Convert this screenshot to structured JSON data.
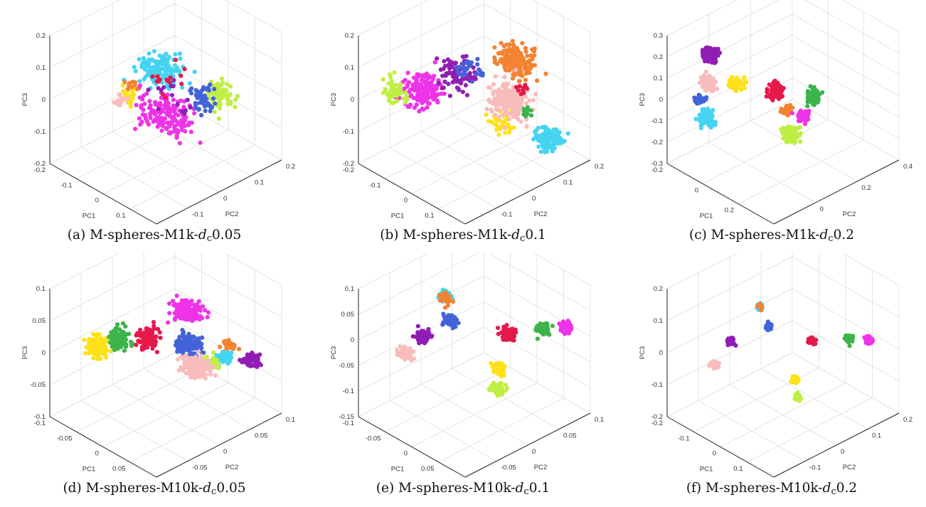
{
  "figures": [
    {
      "label": "(a)",
      "name": "M-spheres-M1k-",
      "dc": "d",
      "sub": "c",
      "val": "0.05"
    },
    {
      "label": "(b)",
      "name": "M-spheres-M1k-",
      "dc": "d",
      "sub": "c",
      "val": "0.1"
    },
    {
      "label": "(c)",
      "name": "M-spheres-M1k-",
      "dc": "d",
      "sub": "c",
      "val": "0.2"
    },
    {
      "label": "(d)",
      "name": "M-spheres-M10k-",
      "dc": "d",
      "sub": "c",
      "val": "0.05"
    },
    {
      "label": "(e)",
      "name": "M-spheres-M10k-",
      "dc": "d",
      "sub": "c",
      "val": "0.1"
    },
    {
      "label": "(f)",
      "name": "M-spheres-M10k-",
      "dc": "d",
      "sub": "c",
      "val": "0.2"
    }
  ],
  "palette": {
    "magenta": "#ee33e8",
    "cyan": "#44d4f2",
    "lime": "#bfef45",
    "yellow": "#ffe119",
    "pink": "#f8bcbc",
    "blue": "#4363d8",
    "green": "#3cb44b",
    "red": "#e6194b",
    "purple": "#911eb4",
    "orange": "#f58231"
  },
  "chart_data": [
    {
      "type": "scatter",
      "title": "",
      "xlabel": "PC1",
      "ylabel": "PC2",
      "zlabel": "PC3",
      "xlim": [
        -0.2,
        0.2
      ],
      "ylim": [
        -0.2,
        0.2
      ],
      "zlim": [
        -0.2,
        0.2
      ],
      "xticks": [
        "-0.2",
        "-0.1",
        "0",
        "0.1",
        "0.2"
      ],
      "yticks": [
        "-0.2",
        "-0.1",
        "0",
        "0.1",
        "0.2"
      ],
      "zticks": [
        "-0.2",
        "-0.1",
        "0",
        "0.1",
        "0.2"
      ],
      "clusters": [
        {
          "color": "magenta",
          "center": [
            0.0,
            0.0,
            -0.05
          ],
          "spread": [
            0.08,
            0.06,
            0.04
          ],
          "n": 170
        },
        {
          "color": "cyan",
          "center": [
            -0.02,
            0.0,
            0.08
          ],
          "spread": [
            0.06,
            0.05,
            0.035
          ],
          "n": 140
        },
        {
          "color": "lime",
          "center": [
            0.09,
            0.1,
            0.0
          ],
          "spread": [
            0.04,
            0.03,
            0.04
          ],
          "n": 70
        },
        {
          "color": "blue",
          "center": [
            0.05,
            0.08,
            -0.02
          ],
          "spread": [
            0.04,
            0.03,
            0.04
          ],
          "n": 50
        },
        {
          "color": "yellow",
          "center": [
            -0.08,
            -0.05,
            0.0
          ],
          "spread": [
            0.02,
            0.02,
            0.04
          ],
          "n": 25
        },
        {
          "color": "pink",
          "center": [
            -0.1,
            -0.06,
            -0.02
          ],
          "spread": [
            0.02,
            0.02,
            0.03
          ],
          "n": 15
        },
        {
          "color": "red",
          "center": [
            0.0,
            0.0,
            0.06
          ],
          "spread": [
            0.06,
            0.05,
            0.04
          ],
          "n": 15
        },
        {
          "color": "purple",
          "center": [
            0.0,
            0.02,
            0.0
          ],
          "spread": [
            0.06,
            0.05,
            0.06
          ],
          "n": 15
        },
        {
          "color": "orange",
          "center": [
            -0.08,
            -0.04,
            0.02
          ],
          "spread": [
            0.02,
            0.02,
            0.02
          ],
          "n": 10
        }
      ]
    },
    {
      "type": "scatter",
      "title": "",
      "xlabel": "PC1",
      "ylabel": "PC2",
      "zlabel": "PC3",
      "xlim": [
        -0.2,
        0.2
      ],
      "ylim": [
        -0.2,
        0.2
      ],
      "zlim": [
        -0.2,
        0.2
      ],
      "xticks": [
        "-0.2",
        "-0.1",
        "0",
        "0.1",
        "0.2"
      ],
      "yticks": [
        "-0.2",
        "-0.1",
        "0",
        "0.1",
        "0.2"
      ],
      "zticks": [
        "-0.2",
        "-0.1",
        "0",
        "0.1",
        "0.2"
      ],
      "clusters": [
        {
          "color": "magenta",
          "center": [
            -0.1,
            -0.08,
            0.02
          ],
          "spread": [
            0.05,
            0.04,
            0.05
          ],
          "n": 150
        },
        {
          "color": "orange",
          "center": [
            0.08,
            0.06,
            0.12
          ],
          "spread": [
            0.06,
            0.04,
            0.04
          ],
          "n": 150
        },
        {
          "color": "purple",
          "center": [
            -0.04,
            -0.02,
            0.06
          ],
          "spread": [
            0.05,
            0.04,
            0.05
          ],
          "n": 80
        },
        {
          "color": "lime",
          "center": [
            -0.16,
            -0.12,
            0.0
          ],
          "spread": [
            0.03,
            0.02,
            0.04
          ],
          "n": 50
        },
        {
          "color": "blue",
          "center": [
            -0.02,
            0.0,
            0.08
          ],
          "spread": [
            0.03,
            0.03,
            0.03
          ],
          "n": 30
        },
        {
          "color": "yellow",
          "center": [
            0.07,
            0.03,
            -0.06
          ],
          "spread": [
            0.04,
            0.03,
            0.03
          ],
          "n": 40
        },
        {
          "color": "cyan",
          "center": [
            0.14,
            0.12,
            -0.12
          ],
          "spread": [
            0.04,
            0.03,
            0.03
          ],
          "n": 100
        },
        {
          "color": "pink",
          "center": [
            0.07,
            0.05,
            0.0
          ],
          "spread": [
            0.05,
            0.04,
            0.05
          ],
          "n": 220
        },
        {
          "color": "green",
          "center": [
            0.1,
            0.08,
            -0.04
          ],
          "spread": [
            0.02,
            0.02,
            0.02
          ],
          "n": 10
        },
        {
          "color": "red",
          "center": [
            0.1,
            0.07,
            0.04
          ],
          "spread": [
            0.02,
            0.02,
            0.02
          ],
          "n": 10
        }
      ]
    },
    {
      "type": "scatter",
      "title": "",
      "xlabel": "PC1",
      "ylabel": "PC2",
      "zlabel": "PC3",
      "xlim": [
        -0.2,
        0.4
      ],
      "ylim": [
        -0.2,
        0.4
      ],
      "zlim": [
        -0.3,
        0.3
      ],
      "xticks": [
        "-0.2",
        "0",
        "0.2",
        "0.4"
      ],
      "yticks": [
        "-0.2",
        "0",
        "0.2",
        "0.4"
      ],
      "zticks": [
        "-0.3",
        "-0.2",
        "-0.1",
        "0",
        "0.1",
        "0.2",
        "0.3"
      ],
      "clusters": [
        {
          "color": "purple",
          "center": [
            -0.12,
            -0.06,
            0.18
          ],
          "spread": [
            0.03,
            0.025,
            0.03
          ],
          "n": 150
        },
        {
          "color": "pink",
          "center": [
            -0.14,
            -0.05,
            0.03
          ],
          "spread": [
            0.03,
            0.025,
            0.03
          ],
          "n": 90
        },
        {
          "color": "yellow",
          "center": [
            -0.04,
            0.0,
            0.05
          ],
          "spread": [
            0.025,
            0.02,
            0.03
          ],
          "n": 60
        },
        {
          "color": "blue",
          "center": [
            -0.16,
            -0.08,
            -0.04
          ],
          "spread": [
            0.02,
            0.02,
            0.02
          ],
          "n": 30
        },
        {
          "color": "cyan",
          "center": [
            -0.13,
            -0.07,
            -0.12
          ],
          "spread": [
            0.03,
            0.025,
            0.03
          ],
          "n": 100
        },
        {
          "color": "red",
          "center": [
            0.08,
            0.08,
            0.03
          ],
          "spread": [
            0.03,
            0.025,
            0.03
          ],
          "n": 100
        },
        {
          "color": "green",
          "center": [
            0.2,
            0.16,
            0.02
          ],
          "spread": [
            0.03,
            0.025,
            0.03
          ],
          "n": 80
        },
        {
          "color": "orange",
          "center": [
            0.12,
            0.1,
            -0.05
          ],
          "spread": [
            0.02,
            0.02,
            0.02
          ],
          "n": 60
        },
        {
          "color": "magenta",
          "center": [
            0.16,
            0.14,
            -0.08
          ],
          "spread": [
            0.025,
            0.02,
            0.025
          ],
          "n": 60
        },
        {
          "color": "lime",
          "center": [
            0.12,
            0.12,
            -0.17
          ],
          "spread": [
            0.03,
            0.025,
            0.03
          ],
          "n": 140
        }
      ]
    },
    {
      "type": "scatter",
      "title": "",
      "xlabel": "PC1",
      "ylabel": "PC2",
      "zlabel": "PC3",
      "xlim": [
        -0.1,
        0.1
      ],
      "ylim": [
        -0.1,
        0.1
      ],
      "zlim": [
        -0.1,
        0.1
      ],
      "xticks": [
        "-0.1",
        "-0.05",
        "0",
        "0.05",
        "0.1"
      ],
      "yticks": [
        "-0.1",
        "-0.05",
        "0",
        "0.05",
        "0.1"
      ],
      "zticks": [
        "-0.1",
        "-0.05",
        "0",
        "0.05",
        "0.1"
      ],
      "clusters": [
        {
          "color": "yellow",
          "center": [
            -0.07,
            -0.05,
            0.0
          ],
          "spread": [
            0.015,
            0.012,
            0.015
          ],
          "n": 130
        },
        {
          "color": "green",
          "center": [
            -0.04,
            -0.04,
            0.02
          ],
          "spread": [
            0.015,
            0.012,
            0.015
          ],
          "n": 100
        },
        {
          "color": "red",
          "center": [
            -0.01,
            -0.02,
            0.025
          ],
          "spread": [
            0.015,
            0.012,
            0.015
          ],
          "n": 110
        },
        {
          "color": "magenta",
          "center": [
            0.03,
            0.01,
            0.07
          ],
          "spread": [
            0.02,
            0.015,
            0.012
          ],
          "n": 150
        },
        {
          "color": "blue",
          "center": [
            0.03,
            0.01,
            0.02
          ],
          "spread": [
            0.02,
            0.015,
            0.012
          ],
          "n": 120
        },
        {
          "color": "purple",
          "center": [
            0.08,
            0.07,
            -0.01
          ],
          "spread": [
            0.012,
            0.01,
            0.012
          ],
          "n": 60
        },
        {
          "color": "orange",
          "center": [
            0.06,
            0.05,
            0.01
          ],
          "spread": [
            0.01,
            0.008,
            0.01
          ],
          "n": 30
        },
        {
          "color": "cyan",
          "center": [
            0.05,
            0.05,
            -0.01
          ],
          "spread": [
            0.01,
            0.008,
            0.01
          ],
          "n": 40
        },
        {
          "color": "lime",
          "center": [
            0.04,
            0.04,
            -0.02
          ],
          "spread": [
            0.01,
            0.008,
            0.01
          ],
          "n": 30
        },
        {
          "color": "pink",
          "center": [
            0.02,
            0.03,
            -0.03
          ],
          "spread": [
            0.02,
            0.015,
            0.012
          ],
          "n": 200
        }
      ]
    },
    {
      "type": "scatter",
      "title": "",
      "xlabel": "PC1",
      "ylabel": "PC2",
      "zlabel": "PC3",
      "xlim": [
        -0.1,
        0.1
      ],
      "ylim": [
        -0.1,
        0.1
      ],
      "zlim": [
        -0.15,
        0.1
      ],
      "xticks": [
        "-0.1",
        "-0.05",
        "0",
        "0.05",
        "0.1"
      ],
      "yticks": [
        "-0.1",
        "-0.05",
        "0",
        "0.05",
        "0.1"
      ],
      "zticks": [
        "-0.15",
        "-0.1",
        "-0.05",
        "0",
        "0.05",
        "0.1"
      ],
      "clusters": [
        {
          "color": "cyan",
          "center": [
            -0.03,
            -0.02,
            0.075
          ],
          "spread": [
            0.008,
            0.006,
            0.006
          ],
          "n": 80
        },
        {
          "color": "orange",
          "center": [
            -0.03,
            -0.02,
            0.07
          ],
          "spread": [
            0.01,
            0.008,
            0.008
          ],
          "n": 25
        },
        {
          "color": "blue",
          "center": [
            -0.02,
            -0.02,
            0.035
          ],
          "spread": [
            0.01,
            0.008,
            0.008
          ],
          "n": 80
        },
        {
          "color": "purple",
          "center": [
            -0.05,
            -0.04,
            0.0
          ],
          "spread": [
            0.01,
            0.008,
            0.009
          ],
          "n": 80
        },
        {
          "color": "red",
          "center": [
            0.04,
            0.02,
            0.02
          ],
          "spread": [
            0.01,
            0.008,
            0.009
          ],
          "n": 80
        },
        {
          "color": "green",
          "center": [
            0.07,
            0.05,
            0.03
          ],
          "spread": [
            0.01,
            0.008,
            0.009
          ],
          "n": 80
        },
        {
          "color": "magenta",
          "center": [
            0.09,
            0.07,
            0.03
          ],
          "spread": [
            0.008,
            0.006,
            0.009
          ],
          "n": 60
        },
        {
          "color": "pink",
          "center": [
            -0.07,
            -0.05,
            -0.04
          ],
          "spread": [
            0.01,
            0.008,
            0.009
          ],
          "n": 80
        },
        {
          "color": "yellow",
          "center": [
            0.02,
            0.02,
            -0.06
          ],
          "spread": [
            0.01,
            0.008,
            0.008
          ],
          "n": 70
        },
        {
          "color": "lime",
          "center": [
            0.02,
            0.02,
            -0.1
          ],
          "spread": [
            0.01,
            0.008,
            0.009
          ],
          "n": 90
        }
      ]
    },
    {
      "type": "scatter",
      "title": "",
      "xlabel": "PC1",
      "ylabel": "PC2",
      "zlabel": "PC3",
      "xlim": [
        -0.2,
        0.2
      ],
      "ylim": [
        -0.2,
        0.2
      ],
      "zlim": [
        -0.2,
        0.2
      ],
      "xticks": [
        "-0.2",
        "-0.1",
        "0",
        "0.1",
        "0.2"
      ],
      "yticks": [
        "-0.2",
        "-0.1",
        "0",
        "0.1",
        "0.2"
      ],
      "zticks": [
        "-0.2",
        "-0.1",
        "0",
        "0.1",
        "0.2"
      ],
      "clusters": [
        {
          "color": "cyan",
          "center": [
            -0.04,
            -0.04,
            0.14
          ],
          "spread": [
            0.008,
            0.006,
            0.008
          ],
          "n": 60
        },
        {
          "color": "orange",
          "center": [
            -0.04,
            -0.04,
            0.14
          ],
          "spread": [
            0.008,
            0.006,
            0.008
          ],
          "n": 12
        },
        {
          "color": "blue",
          "center": [
            -0.02,
            -0.03,
            0.08
          ],
          "spread": [
            0.008,
            0.006,
            0.008
          ],
          "n": 60
        },
        {
          "color": "purple",
          "center": [
            -0.1,
            -0.08,
            0.02
          ],
          "spread": [
            0.01,
            0.008,
            0.008
          ],
          "n": 60
        },
        {
          "color": "pink",
          "center": [
            -0.14,
            -0.1,
            -0.06
          ],
          "spread": [
            0.01,
            0.008,
            0.008
          ],
          "n": 60
        },
        {
          "color": "red",
          "center": [
            0.06,
            0.04,
            0.04
          ],
          "spread": [
            0.01,
            0.008,
            0.008
          ],
          "n": 60
        },
        {
          "color": "green",
          "center": [
            0.13,
            0.1,
            0.05
          ],
          "spread": [
            0.01,
            0.008,
            0.008
          ],
          "n": 60
        },
        {
          "color": "magenta",
          "center": [
            0.17,
            0.13,
            0.05
          ],
          "spread": [
            0.01,
            0.008,
            0.008
          ],
          "n": 60
        },
        {
          "color": "yellow",
          "center": [
            0.02,
            0.02,
            -0.09
          ],
          "spread": [
            0.008,
            0.006,
            0.008
          ],
          "n": 60
        },
        {
          "color": "lime",
          "center": [
            0.02,
            0.03,
            -0.15
          ],
          "spread": [
            0.008,
            0.006,
            0.008
          ],
          "n": 60
        }
      ]
    }
  ]
}
